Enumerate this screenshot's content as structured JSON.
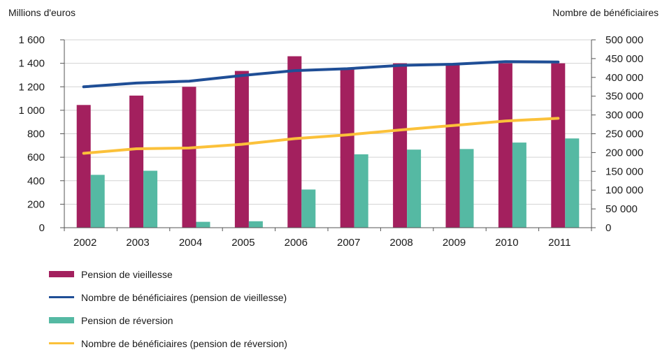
{
  "chart_data": {
    "type": "bar+line",
    "categories": [
      "2002",
      "2003",
      "2004",
      "2005",
      "2006",
      "2007",
      "2008",
      "2009",
      "2010",
      "2011"
    ],
    "y_left": {
      "label": "Millions d'euros",
      "ylim": [
        0,
        1600
      ],
      "ticks": [
        0,
        200,
        400,
        600,
        800,
        1000,
        1200,
        1400,
        1600
      ],
      "tick_labels": [
        "0",
        "200",
        "400",
        "600",
        "800",
        "1 000",
        "1 200",
        "1 400",
        "1 600"
      ]
    },
    "y_right": {
      "label": "Nombre de bénéficiaires",
      "ylim": [
        0,
        500000
      ],
      "ticks": [
        0,
        50000,
        100000,
        150000,
        200000,
        250000,
        300000,
        350000,
        400000,
        450000,
        500000
      ],
      "tick_labels": [
        "0",
        "50 000",
        "100 000",
        "150 000",
        "200 000",
        "250 000",
        "300 000",
        "350 000",
        "400 000",
        "450 000",
        "500 000"
      ]
    },
    "series": [
      {
        "name": "Pension de vieillesse",
        "type": "bar",
        "axis": "left",
        "color": "#a3205e",
        "values": [
          1045,
          1125,
          1200,
          1335,
          1460,
          1360,
          1400,
          1385,
          1400,
          1400
        ]
      },
      {
        "name": "Nombre de bénéficiaires (pension de vieillesse)",
        "type": "line",
        "axis": "right",
        "color": "#1f4e96",
        "values": [
          375000,
          385000,
          390000,
          405000,
          418000,
          423000,
          432000,
          435000,
          442000,
          441000
        ]
      },
      {
        "name": "Pension de réversion",
        "type": "bar",
        "axis": "left",
        "color": "#55b9a3",
        "values": [
          450,
          485,
          50,
          55,
          325,
          625,
          665,
          670,
          725,
          760
        ]
      },
      {
        "name": "Nombre de bénéficiaires (pension de réversion)",
        "type": "line",
        "axis": "right",
        "color": "#fbc13a",
        "values": [
          198000,
          210000,
          212000,
          222000,
          237000,
          247000,
          260000,
          272000,
          284000,
          291000
        ]
      }
    ],
    "grid": "horizontal",
    "legend_position": "bottom-left"
  }
}
